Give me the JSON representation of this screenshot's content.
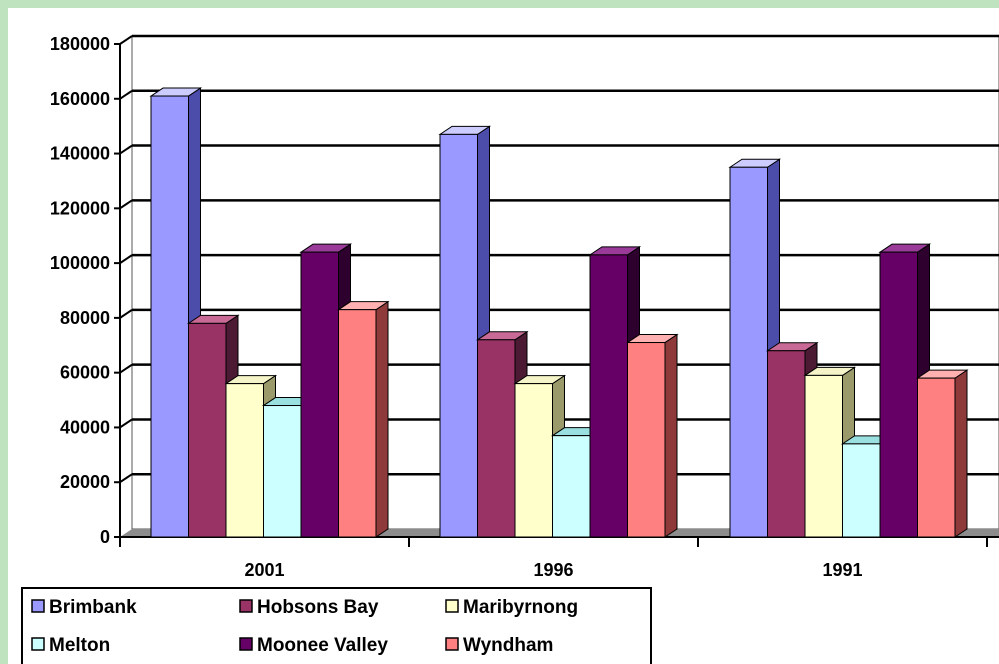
{
  "chart_data": {
    "type": "bar",
    "categories": [
      "2001",
      "1996",
      "1991"
    ],
    "series": [
      {
        "name": "Brimbank",
        "values": [
          161000,
          147000,
          135000
        ],
        "color": "#9999ff",
        "side": "#4c4caa",
        "top": "#ccccff"
      },
      {
        "name": "Hobsons Bay",
        "values": [
          78000,
          72000,
          68000
        ],
        "color": "#993366",
        "side": "#4d1a33",
        "top": "#c86a95"
      },
      {
        "name": "Maribyrnong",
        "values": [
          56000,
          56000,
          59000
        ],
        "color": "#ffffcc",
        "side": "#9a9a6a",
        "top": "#f4f4c8"
      },
      {
        "name": "Melton",
        "values": [
          48000,
          37000,
          34000
        ],
        "color": "#ccffff",
        "side": "#6aa0a0",
        "top": "#9be0e0"
      },
      {
        "name": "Moonee Valley",
        "values": [
          104000,
          103000,
          104000
        ],
        "color": "#660066",
        "side": "#2e002e",
        "top": "#9a3b9a"
      },
      {
        "name": "Wyndham",
        "values": [
          83000,
          71000,
          58000
        ],
        "color": "#ff8080",
        "side": "#8f3a3a",
        "top": "#ffb0b0"
      }
    ],
    "yticks": [
      "0",
      "20000",
      "40000",
      "60000",
      "80000",
      "100000",
      "120000",
      "140000",
      "160000",
      "180000"
    ],
    "ylim": [
      0,
      180000
    ],
    "grid": true,
    "legend_position": "bottom-left"
  }
}
